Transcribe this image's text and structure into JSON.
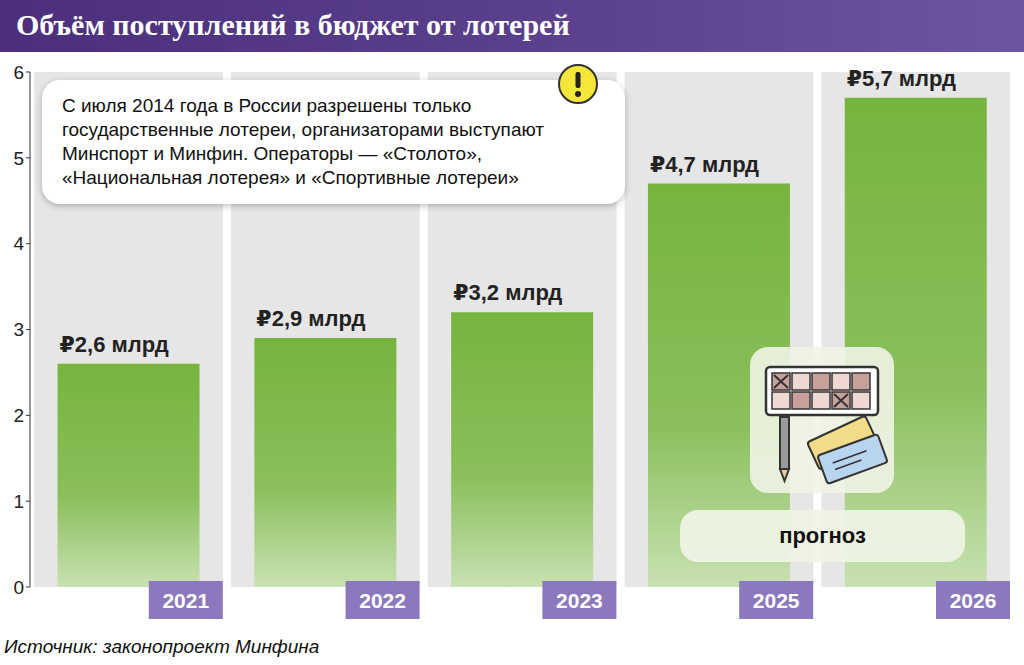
{
  "chart_data": {
    "type": "bar",
    "title": "Объём поступлений в бюджет от лотерей",
    "categories": [
      "2021",
      "2022",
      "2023",
      "2025",
      "2026"
    ],
    "values": [
      2.6,
      2.9,
      3.2,
      4.7,
      5.7
    ],
    "value_labels": [
      "₽2,6 млрд",
      "₽2,9 млрд",
      "₽3,2 млрд",
      "₽4,7 млрд",
      "₽5,7 млрд"
    ],
    "color": "#76b43f",
    "ylim": [
      0,
      6
    ],
    "yticks": [
      0,
      1,
      2,
      3,
      4,
      5,
      6
    ],
    "grid": false,
    "data_labels": true,
    "annotations": [
      "С июля 2014 года в России разрешены только государственные лотереи, организаторами выступают Минспорт и Минфин. Операторы — «Столото», «Национальная лотерея» и «Спортивные лотереи»",
      "прогноз"
    ],
    "source": "Источник: законопроект Минфина"
  }
}
